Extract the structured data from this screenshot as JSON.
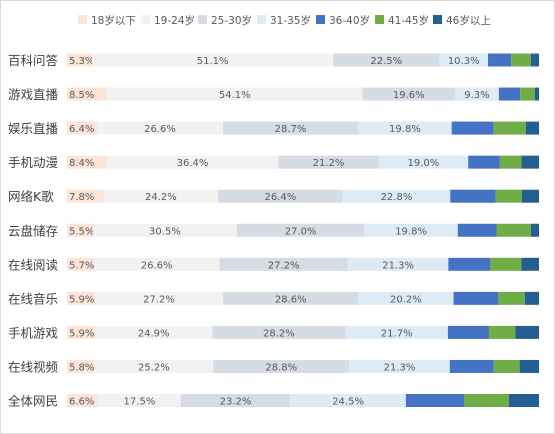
{
  "chart_data": {
    "type": "bar",
    "orientation": "horizontal",
    "stacked": true,
    "percent": true,
    "categories": [
      "百科问答",
      "游戏直播",
      "娱乐直播",
      "手机动漫",
      "网络K歌",
      "云盘储存",
      "在线阅读",
      "在线音乐",
      "手机游戏",
      "在线视频",
      "全体网民"
    ],
    "series": [
      {
        "name": "18岁以下",
        "color": "#fce4d6",
        "values": [
          5.3,
          8.5,
          6.4,
          8.4,
          7.8,
          5.5,
          5.7,
          5.9,
          5.9,
          5.8,
          6.6
        ]
      },
      {
        "name": "19-24岁",
        "color": "#f2f2f2",
        "values": [
          51.1,
          54.1,
          26.6,
          36.4,
          24.2,
          30.5,
          26.6,
          27.2,
          24.9,
          25.2,
          17.5
        ]
      },
      {
        "name": "25-30岁",
        "color": "#d6dce4",
        "values": [
          22.5,
          19.6,
          28.7,
          21.2,
          26.4,
          27.0,
          27.2,
          28.6,
          28.2,
          28.8,
          23.2
        ]
      },
      {
        "name": "31-35岁",
        "color": "#ddebf7",
        "values": [
          10.3,
          9.3,
          19.8,
          19.0,
          22.8,
          19.8,
          21.3,
          20.2,
          21.7,
          21.3,
          24.5
        ]
      },
      {
        "name": "36-40岁",
        "color": "#4472c4",
        "values": [
          4.9,
          4.5,
          8.9,
          6.7,
          9.6,
          8.2,
          8.9,
          9.5,
          8.7,
          9.3,
          12.4
        ]
      },
      {
        "name": "41-45岁",
        "color": "#70ad47",
        "values": [
          4.2,
          3.1,
          6.8,
          4.6,
          5.6,
          7.3,
          6.6,
          5.6,
          5.6,
          5.5,
          9.4
        ]
      },
      {
        "name": "46岁以上",
        "color": "#255e91",
        "values": [
          1.7,
          0.9,
          2.8,
          3.7,
          3.6,
          1.7,
          3.7,
          3.0,
          5.0,
          4.1,
          6.4
        ]
      }
    ],
    "labeled_series": [
      0,
      1,
      2,
      3
    ],
    "xlim": [
      0,
      100
    ],
    "legend_position": "top",
    "grid": false
  }
}
